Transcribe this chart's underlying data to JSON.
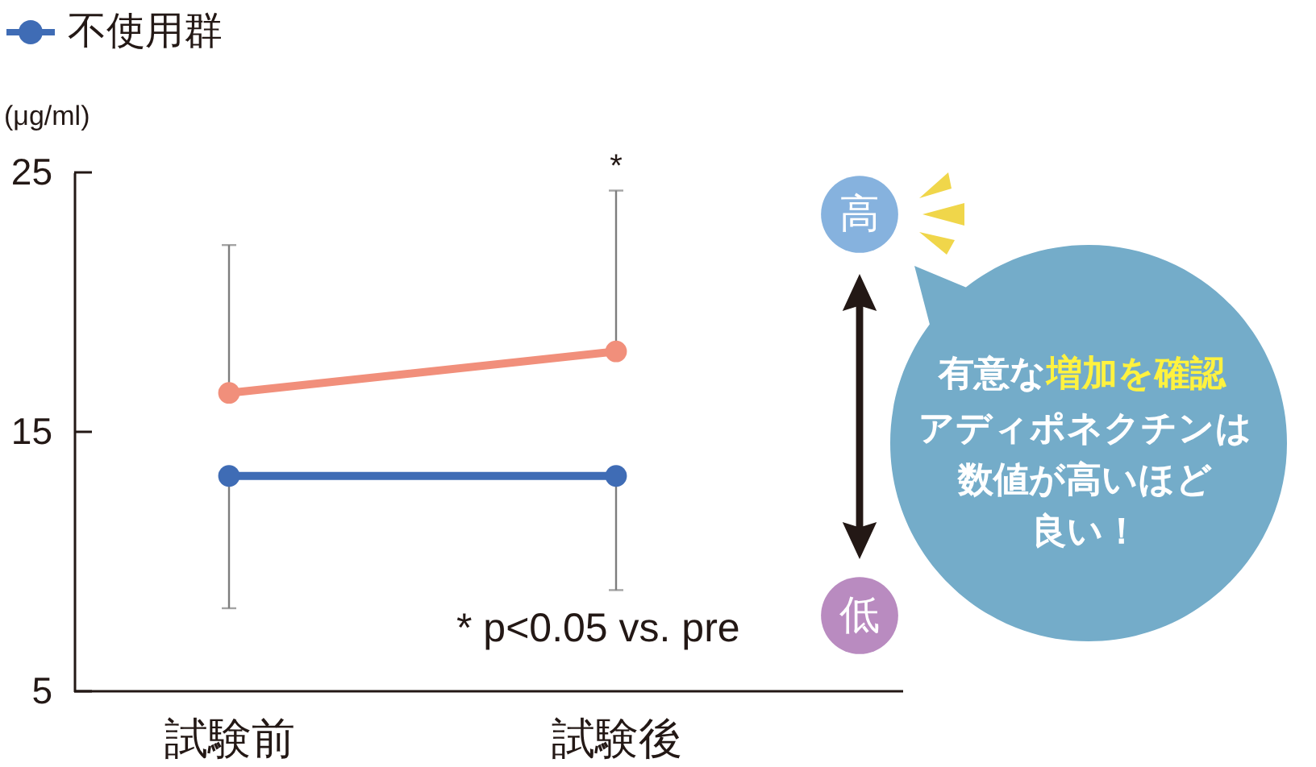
{
  "chart_data": {
    "type": "line",
    "ylabel": "(μg/ml)",
    "categories": [
      "試験前",
      "試験後"
    ],
    "series": [
      {
        "color": "#f18f7b",
        "values": [
          16.5,
          18.1
        ],
        "errors": [
          [
            16.5,
            22.2
          ],
          [
            18.1,
            24.3
          ]
        ]
      },
      {
        "name": "不使用群",
        "color": "#3f6cb5",
        "values": [
          13.3,
          13.3
        ],
        "errors": [
          [
            8.2,
            13.3
          ],
          [
            8.9,
            13.3
          ]
        ]
      }
    ],
    "ylim": [
      5,
      25
    ],
    "yticks": [
      5,
      15,
      25
    ],
    "grid": false,
    "legend": "top left",
    "marker": "circle",
    "line_style": "solid",
    "annotations": [
      {
        "text": "*",
        "x": "試験後",
        "y": 24.3
      },
      "* p<0.05 vs. pre",
      "高",
      "低",
      "有意な",
      "増加を確認",
      "アディポネクチンは",
      "数値が高いほど",
      "良い！"
    ]
  }
}
